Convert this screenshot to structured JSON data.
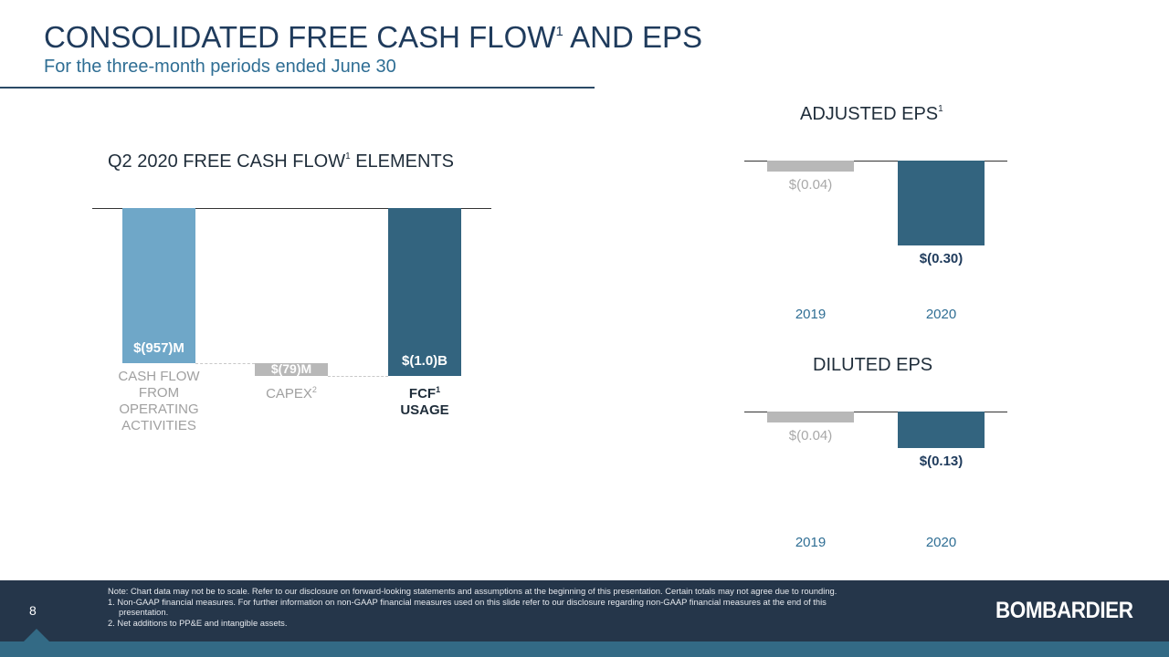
{
  "header": {
    "title": "CONSOLIDATED FREE CASH FLOW",
    "title_sup": "1",
    "title_end": " AND EPS",
    "subtitle": "For the three-month periods ended June 30"
  },
  "chart_data": [
    {
      "type": "bar",
      "subtype": "waterfall",
      "title": "Q2 2020 FREE CASH FLOW",
      "title_sup": "1",
      "title_end": " ELEMENTS",
      "categories": [
        "CASH FLOW FROM OPERATING ACTIVITIES",
        "CAPEX",
        "FCF USAGE"
      ],
      "category_lines": [
        [
          "CASH FLOW",
          "FROM",
          "OPERATING",
          "ACTIVITIES"
        ],
        [
          "CAPEX"
        ],
        [
          "FCF",
          "USAGE"
        ]
      ],
      "category_sups": [
        "",
        "2",
        "1"
      ],
      "values": [
        -957,
        -79,
        -1036
      ],
      "unit": "$M",
      "data_labels": [
        "$(957)M",
        "$(79)M",
        "$(1.0)B"
      ],
      "colors": [
        "#6fa7c8",
        "#b8b8b8",
        "#33647f"
      ]
    },
    {
      "type": "bar",
      "title": "ADJUSTED EPS",
      "title_sup": "1",
      "categories": [
        "2019",
        "2020"
      ],
      "values": [
        -0.04,
        -0.3
      ],
      "data_labels": [
        "$(0.04)",
        "$(0.30)"
      ],
      "colors": [
        "#b8b8b8",
        "#33647f"
      ]
    },
    {
      "type": "bar",
      "title": "DILUTED EPS",
      "categories": [
        "2019",
        "2020"
      ],
      "values": [
        -0.04,
        -0.13
      ],
      "data_labels": [
        "$(0.04)",
        "$(0.13)"
      ],
      "colors": [
        "#b8b8b8",
        "#33647f"
      ]
    }
  ],
  "footer": {
    "page": "8",
    "note": "Note: Chart data may not be to scale. Refer to our disclosure on forward-looking statements and assumptions at the beginning of this presentation. Certain totals may not agree due to rounding.",
    "footnote1": "1.  Non-GAAP financial measures. For further information on non-GAAP financial measures used on this slide refer to our disclosure regarding non-GAAP financial measures at the end of this",
    "footnote1b": "presentation.",
    "footnote2": "2.  Net additions to PP&E and intangible assets.",
    "logo": "BOMBARDIER"
  }
}
